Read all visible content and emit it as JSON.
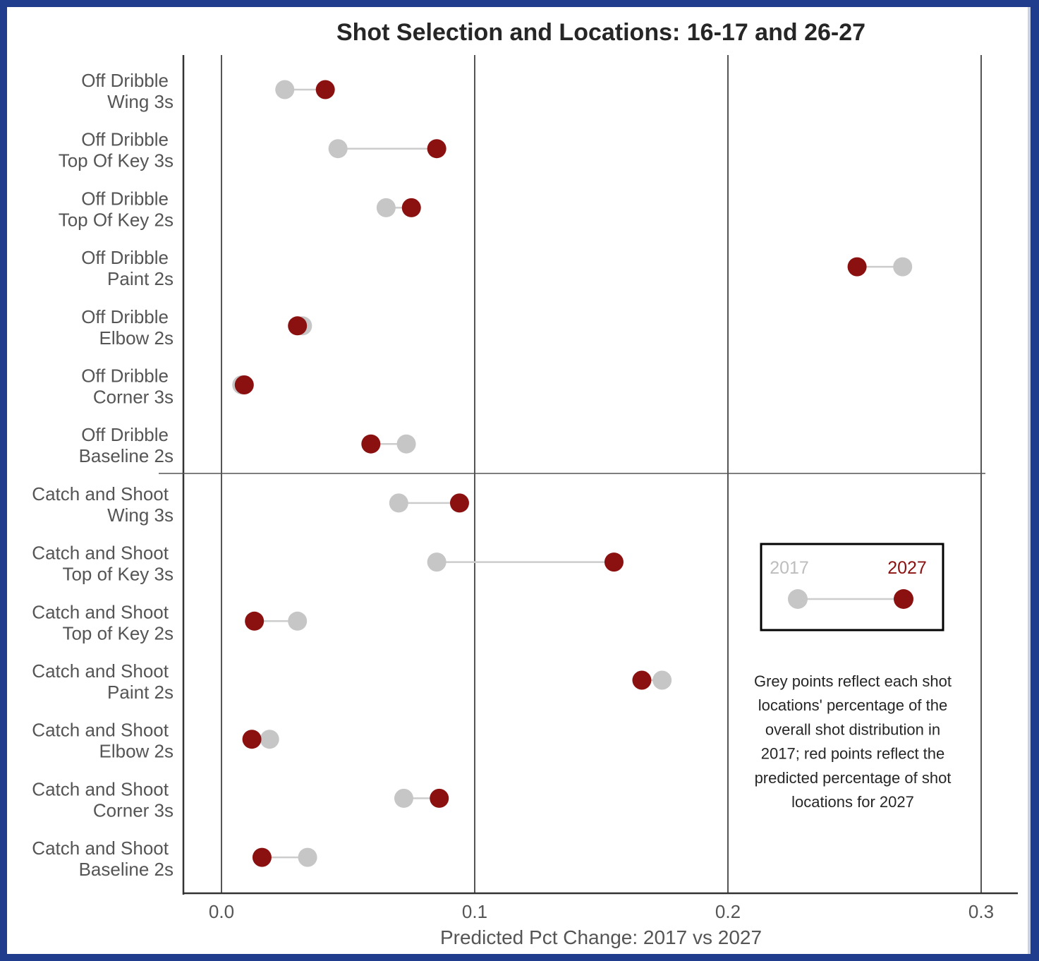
{
  "chart_data": {
    "type": "scatter",
    "subtype": "dumbbell",
    "title": "Shot Selection and Locations: 16-17 and 26-27",
    "xlabel": "Predicted Pct Change: 2017 vs 2027",
    "ylabel": "",
    "xlim": [
      -0.015,
      0.315
    ],
    "x_ticks": [
      "0.0",
      "0.1",
      "0.2",
      "0.3"
    ],
    "x_tick_values": [
      0.0,
      0.1,
      0.2,
      0.3
    ],
    "grid": "vertical major gridlines",
    "legend_position": "right",
    "legend": {
      "start_label": "2017",
      "end_label": "2027"
    },
    "colors": {
      "2017": "#c6c6c6",
      "2027": "#8b1111",
      "connector": "#cccccc"
    },
    "categories": [
      {
        "line1": "Off Dribble",
        "line2": "Wing 3s"
      },
      {
        "line1": "Off Dribble",
        "line2": "Top Of Key 3s"
      },
      {
        "line1": "Off Dribble",
        "line2": "Top Of Key 2s"
      },
      {
        "line1": "Off Dribble",
        "line2": "Paint 2s"
      },
      {
        "line1": "Off Dribble",
        "line2": "Elbow 2s"
      },
      {
        "line1": "Off Dribble",
        "line2": "Corner 3s"
      },
      {
        "line1": "Off Dribble",
        "line2": "Baseline 2s"
      },
      {
        "line1": "Catch and Shoot",
        "line2": "Wing 3s"
      },
      {
        "line1": "Catch and Shoot",
        "line2": "Top of Key 3s"
      },
      {
        "line1": "Catch and Shoot",
        "line2": "Top of Key 2s"
      },
      {
        "line1": "Catch and Shoot",
        "line2": "Paint 2s"
      },
      {
        "line1": "Catch and Shoot",
        "line2": "Elbow 2s"
      },
      {
        "line1": "Catch and Shoot",
        "line2": "Corner 3s"
      },
      {
        "line1": "Catch and Shoot",
        "line2": "Baseline 2s"
      }
    ],
    "series": [
      {
        "name": "2017",
        "values": [
          0.025,
          0.046,
          0.065,
          0.269,
          0.032,
          0.008,
          0.073,
          0.07,
          0.085,
          0.03,
          0.174,
          0.019,
          0.072,
          0.034
        ]
      },
      {
        "name": "2027",
        "values": [
          0.041,
          0.085,
          0.075,
          0.251,
          0.03,
          0.009,
          0.059,
          0.094,
          0.155,
          0.013,
          0.166,
          0.012,
          0.086,
          0.016
        ]
      }
    ],
    "annotation": "Grey points reflect each shot locations' percentage of the overall shot distribution in 2017; red points reflect the predicted percentage of shot locations for 2027",
    "annotation_lines": [
      "Grey points reflect each shot",
      "locations' percentage of the",
      "overall shot distribution in",
      "2017; red points reflect the",
      "predicted percentage of shot",
      "locations for 2027"
    ],
    "group_divider_after_index": 6
  }
}
